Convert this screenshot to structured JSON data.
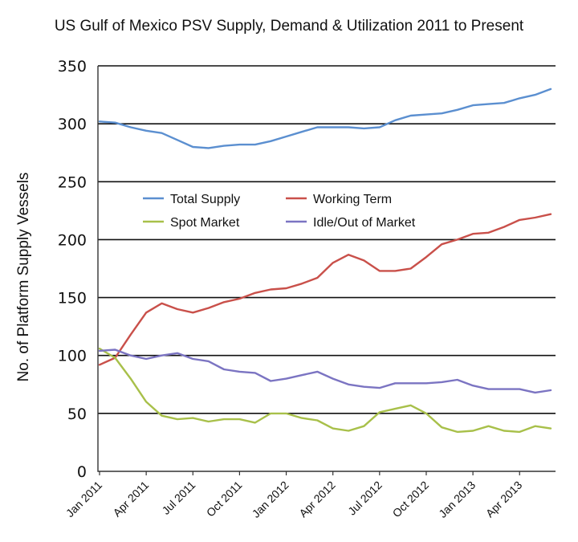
{
  "chart_data": {
    "type": "line",
    "title": "US Gulf of Mexico PSV Supply, Demand & Utilization  2011 to Present",
    "xlabel": "",
    "ylabel": "No. of Platform Supply Vessels",
    "ylim": [
      0,
      350
    ],
    "yticks": [
      0,
      50,
      100,
      150,
      200,
      250,
      300,
      350
    ],
    "grid": "horizontal",
    "legend_position": "center-left inside plot",
    "x_tick_labels": [
      "Jan 2011",
      "Apr 2011",
      "Jul 2011",
      "Oct 2011",
      "Jan 2012",
      "Apr 2012",
      "Jul 2012",
      "Oct 2012",
      "Jan 2013",
      "Apr 2013"
    ],
    "x_tick_positions": [
      0,
      3,
      6,
      9,
      12,
      15,
      18,
      21,
      24,
      27
    ],
    "x_months": 30,
    "series": [
      {
        "name": "Total Supply",
        "color": "#5b8fd0",
        "values": [
          302,
          301,
          297,
          294,
          292,
          286,
          280,
          279,
          281,
          282,
          282,
          285,
          289,
          293,
          297,
          297,
          297,
          296,
          297,
          303,
          307,
          308,
          309,
          312,
          316,
          317,
          318,
          322,
          325,
          330
        ]
      },
      {
        "name": "Working Term",
        "color": "#c9504a",
        "values": [
          92,
          98,
          118,
          137,
          145,
          140,
          137,
          141,
          146,
          149,
          154,
          157,
          158,
          162,
          167,
          180,
          187,
          182,
          173,
          173,
          175,
          185,
          196,
          200,
          205,
          206,
          211,
          217,
          219,
          222
        ]
      },
      {
        "name": "Spot Market",
        "color": "#a8c04a",
        "values": [
          106,
          98,
          80,
          60,
          48,
          45,
          46,
          43,
          45,
          45,
          42,
          50,
          50,
          46,
          44,
          37,
          35,
          39,
          51,
          54,
          57,
          50,
          38,
          34,
          35,
          39,
          35,
          34,
          39,
          37
        ]
      },
      {
        "name": "Idle/Out of Market",
        "color": "#7b74c2",
        "values": [
          104,
          105,
          100,
          97,
          100,
          102,
          97,
          95,
          88,
          86,
          85,
          78,
          80,
          83,
          86,
          80,
          75,
          73,
          72,
          76,
          76,
          76,
          77,
          79,
          74,
          71,
          71,
          71,
          68,
          70
        ]
      }
    ]
  }
}
